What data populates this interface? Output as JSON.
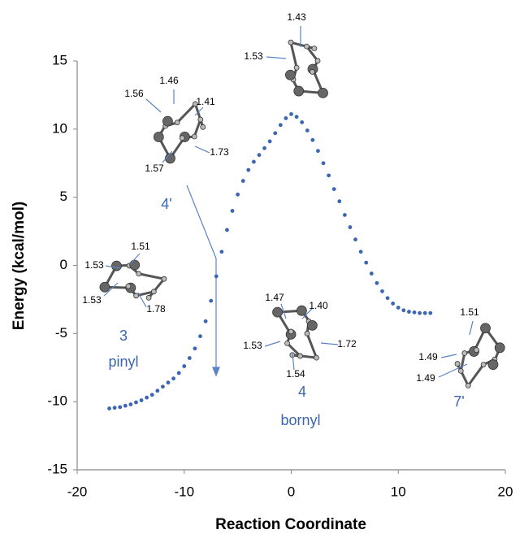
{
  "chart_data": {
    "type": "scatter",
    "x_label": "Reaction Coordinate",
    "y_label": "Energy (kcal/mol)",
    "x": [
      -17,
      -16.5,
      -16,
      -15.5,
      -15,
      -14.5,
      -14,
      -13.5,
      -13,
      -12.5,
      -12,
      -11.5,
      -11,
      -10.5,
      -10,
      -9.5,
      -9,
      -8.5,
      -8,
      -7.5,
      -7,
      -6.5,
      -6,
      -5.5,
      -5,
      -4.5,
      -4,
      -3.5,
      -3,
      -2.5,
      -2,
      -1.5,
      -1,
      -0.5,
      0,
      0.5,
      1,
      1.5,
      2,
      2.5,
      3,
      3.5,
      4,
      4.5,
      5,
      5.5,
      6,
      6.5,
      7,
      7.5,
      8,
      8.5,
      9,
      9.5,
      10,
      10.5,
      11,
      11.5,
      12,
      12.5,
      13
    ],
    "values": [
      -10.5,
      -10.45,
      -10.4,
      -10.3,
      -10.2,
      -10.05,
      -9.9,
      -9.7,
      -9.5,
      -9.2,
      -8.9,
      -8.6,
      -8.3,
      -7.9,
      -7.4,
      -6.8,
      -6.1,
      -5.2,
      -4.1,
      -2.6,
      -0.8,
      1.0,
      2.6,
      4.0,
      5.2,
      6.2,
      7.0,
      7.6,
      8.1,
      8.6,
      9.1,
      9.7,
      10.3,
      10.8,
      11.1,
      10.9,
      10.5,
      9.9,
      9.2,
      8.4,
      7.5,
      6.6,
      5.6,
      4.7,
      3.7,
      2.8,
      1.9,
      1.0,
      0.2,
      -0.6,
      -1.3,
      -1.9,
      -2.4,
      -2.8,
      -3.1,
      -3.3,
      -3.4,
      -3.45,
      -3.5,
      -3.5,
      -3.5
    ],
    "color": "#3b66b0",
    "xlim": [
      -20,
      20
    ],
    "xticks": [
      -20,
      -10,
      0,
      10,
      20
    ],
    "ylim": [
      -15,
      15
    ],
    "yticks": [
      -15,
      -10,
      -5,
      0,
      5,
      10,
      15
    ],
    "grid": false,
    "annotations": [
      "4'",
      "3",
      "pinyl",
      "4",
      "bornyl",
      "7'",
      "1.43",
      "1.53",
      "1.46",
      "1.56",
      "1.41",
      "1.73",
      "1.57",
      "1.51",
      "1.53",
      "1.53",
      "1.78",
      "1.47",
      "1.40",
      "1.72",
      "1.53",
      "1.54",
      "1.51",
      "1.49",
      "1.49"
    ]
  }
}
